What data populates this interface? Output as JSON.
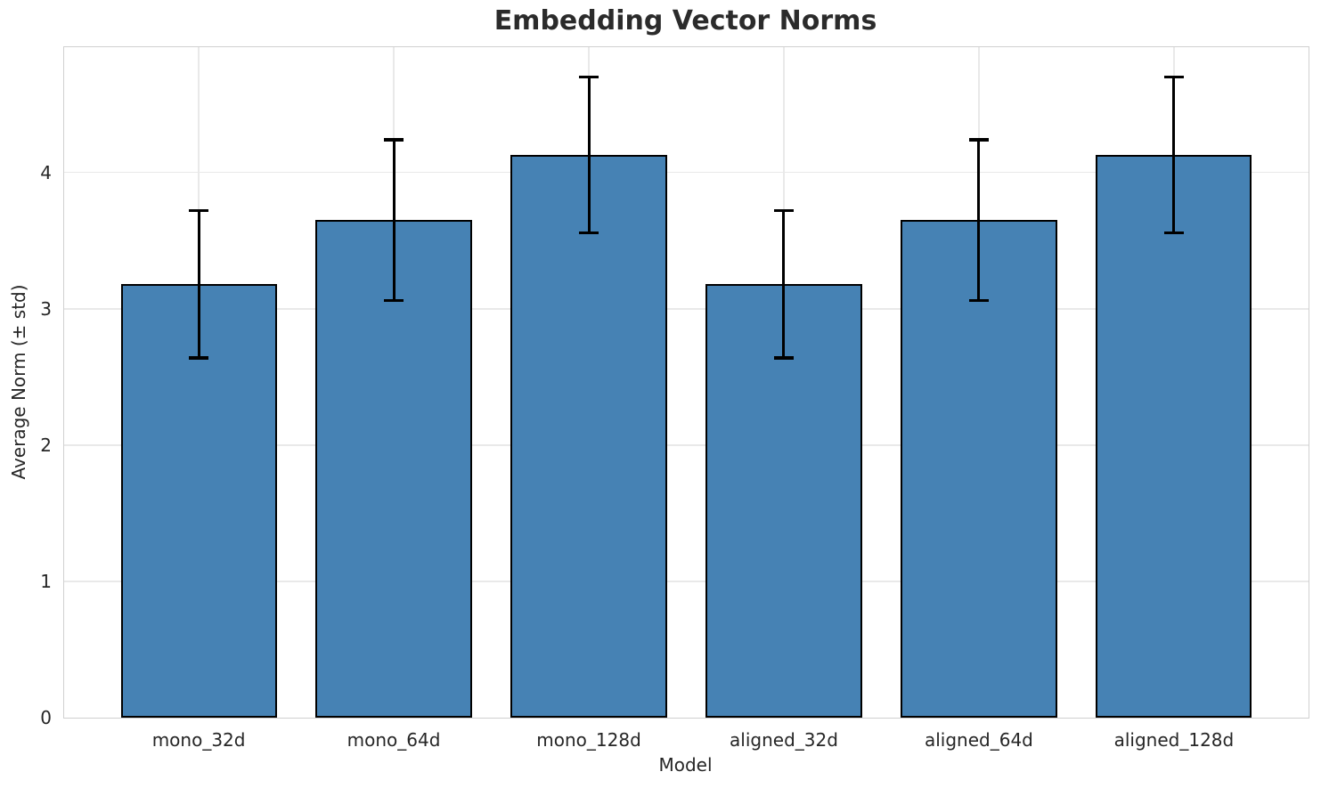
{
  "chart_data": {
    "type": "bar",
    "title": "Embedding Vector Norms",
    "xlabel": "Model",
    "ylabel": "Average Norm (± std)",
    "categories": [
      "mono_32d",
      "mono_64d",
      "mono_128d",
      "aligned_32d",
      "aligned_64d",
      "aligned_128d"
    ],
    "values": [
      3.18,
      3.65,
      4.13,
      3.18,
      3.65,
      4.13
    ],
    "errors": [
      0.54,
      0.59,
      0.57,
      0.54,
      0.59,
      0.57
    ],
    "yticks": [
      0,
      1,
      2,
      3,
      4
    ],
    "ylim": [
      0,
      4.92
    ],
    "xlim": [
      -0.69,
      5.69
    ],
    "bar_width": 0.8,
    "grid": true,
    "legend": "none",
    "colors": {
      "bar_fill": "#4682B4",
      "bar_edge": "#000000",
      "error_bar": "#000000",
      "grid_line": "#e9e9e9",
      "spine": "#d0d0d0",
      "text": "#262626",
      "title_text": "#2b2b2b",
      "background": "#ffffff"
    }
  }
}
